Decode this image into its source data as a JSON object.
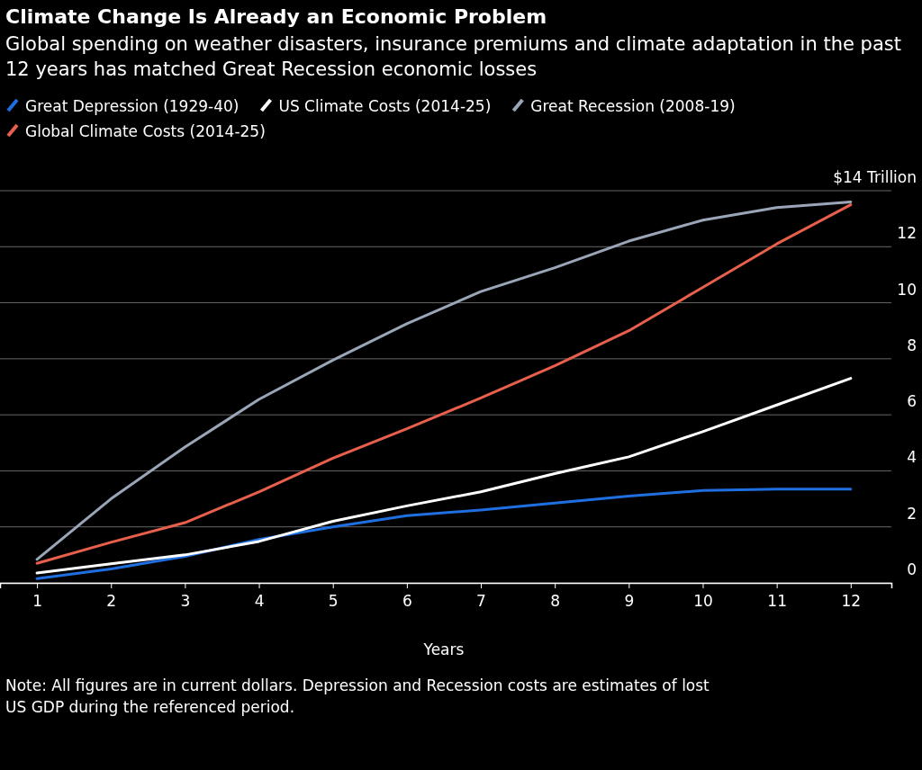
{
  "chart_data": {
    "type": "line",
    "title": "Climate Change Is Already an Economic Problem",
    "subtitle": "Global spending on weather disasters, insurance premiums and climate adaptation in the past 12 years has matched Great Recession economic losses",
    "xlabel": "Years",
    "x": [
      1,
      2,
      3,
      4,
      5,
      6,
      7,
      8,
      9,
      10,
      11,
      12
    ],
    "series": [
      {
        "name": "Great Depression (1929-40)",
        "color": "#1f6fe0",
        "values": [
          0.15,
          0.5,
          0.95,
          1.55,
          2.0,
          2.4,
          2.6,
          2.85,
          3.1,
          3.3,
          3.35,
          3.35
        ]
      },
      {
        "name": "US Climate Costs (2014-25)",
        "color": "#ffffff",
        "values": [
          0.35,
          0.68,
          1.0,
          1.48,
          2.2,
          2.75,
          3.25,
          3.9,
          4.5,
          5.4,
          6.35,
          7.3
        ]
      },
      {
        "name": "Great Recession (2008-19)",
        "color": "#9aa5b8",
        "values": [
          0.84,
          3.0,
          4.85,
          6.55,
          7.95,
          9.25,
          10.4,
          11.25,
          12.2,
          12.95,
          13.4,
          13.6
        ]
      },
      {
        "name": "Global Climate Costs (2014-25)",
        "color": "#e8604c",
        "values": [
          0.7,
          1.45,
          2.15,
          3.25,
          4.45,
          5.5,
          6.6,
          7.75,
          9.0,
          10.55,
          12.1,
          13.5
        ]
      }
    ],
    "xlim": [
      0.5,
      12.55
    ],
    "xticks": [
      1,
      2,
      3,
      4,
      5,
      6,
      7,
      8,
      9,
      10,
      11,
      12
    ],
    "ylim": [
      0,
      14
    ],
    "yticks": [
      0,
      2,
      4,
      6,
      8,
      10,
      12,
      {
        "value": 14,
        "label": "$14 Trillion"
      }
    ],
    "grid": "y",
    "legend": "top left",
    "line_style": "solid",
    "marker": "none",
    "annotations": [
      "Note: All figures are in current dollars. Depression and Recession costs are estimates of lost US GDP during the referenced period."
    ]
  }
}
